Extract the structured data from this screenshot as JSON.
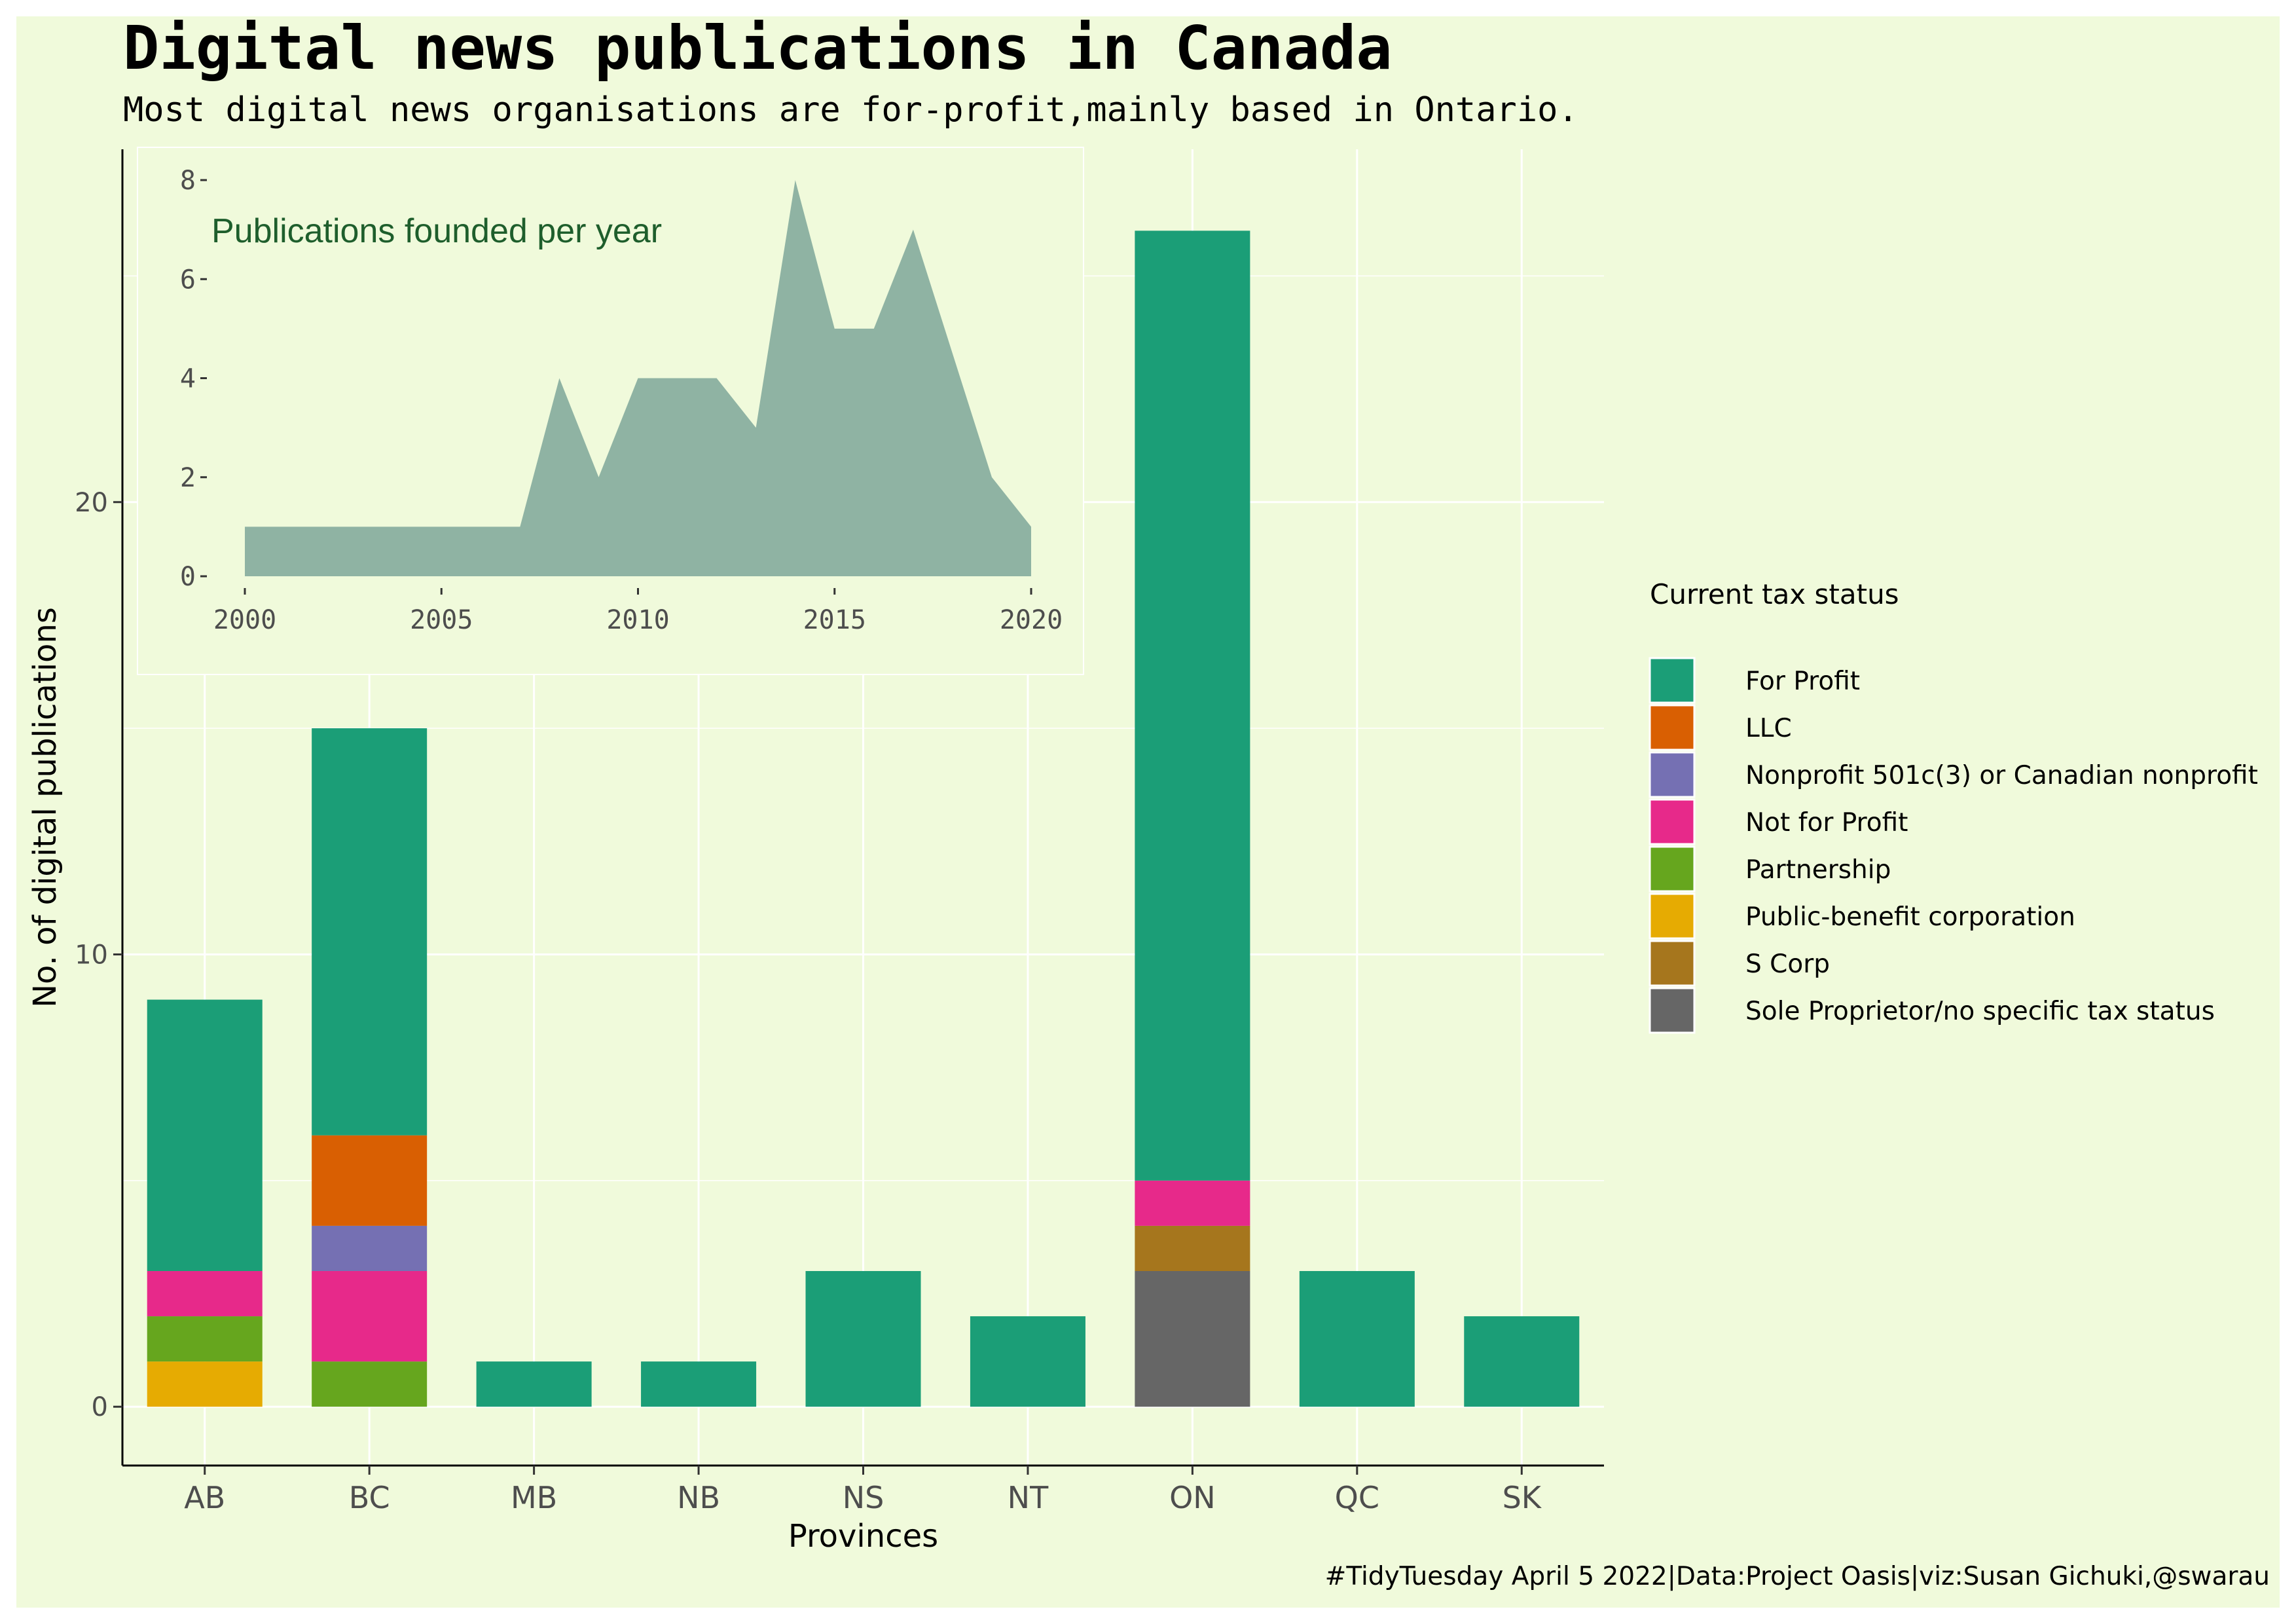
{
  "title": "Digital news publications in Canada",
  "subtitle": "Most digital news organisations are for-profit,mainly based in Ontario.",
  "caption": "#TidyTuesday April 5 2022|Data:Project Oasis|viz:Susan Gichuki,@swarau",
  "colors": {
    "panel_background": "#f0fadb",
    "grid": "#ffffff",
    "inset_fill": "#8fb3a3",
    "inset_title": "#1e5e2c"
  },
  "chart_data": [
    {
      "type": "bar",
      "stacked": true,
      "xlabel": "Provinces",
      "ylabel": "No. of digital publications",
      "ylim": [
        -1.3,
        27.8
      ],
      "yticks": [
        0,
        10,
        20
      ],
      "grid": true,
      "categories": [
        "AB",
        "BC",
        "MB",
        "NB",
        "NS",
        "NT",
        "ON",
        "QC",
        "SK"
      ],
      "legend": {
        "title": "Current tax status",
        "placement": "right"
      },
      "series": [
        {
          "name": "Public-benefit corporation",
          "color": "#e6ab02",
          "values": [
            1,
            0,
            0,
            0,
            0,
            0,
            0,
            0,
            0
          ]
        },
        {
          "name": "Sole Proprietor/no specific tax status",
          "color": "#666666",
          "values": [
            0,
            0,
            0,
            0,
            0,
            0,
            3,
            0,
            0
          ]
        },
        {
          "name": "S Corp",
          "color": "#a6761d",
          "values": [
            0,
            0,
            0,
            0,
            0,
            0,
            1,
            0,
            0
          ]
        },
        {
          "name": "Partnership",
          "color": "#66a61e",
          "values": [
            1,
            1,
            0,
            0,
            0,
            0,
            0,
            0,
            0
          ]
        },
        {
          "name": "Not for Profit",
          "color": "#e7298a",
          "values": [
            1,
            2,
            0,
            0,
            0,
            0,
            1,
            0,
            0
          ]
        },
        {
          "name": "Nonprofit 501c(3) or Canadian nonprofit",
          "color": "#7570b3",
          "values": [
            0,
            1,
            0,
            0,
            0,
            0,
            0,
            0,
            0
          ]
        },
        {
          "name": "LLC",
          "color": "#d95f02",
          "values": [
            0,
            2,
            0,
            0,
            0,
            0,
            0,
            0,
            0
          ]
        },
        {
          "name": "For Profit",
          "color": "#1b9e77",
          "values": [
            6,
            9,
            1,
            1,
            3,
            2,
            21,
            3,
            2
          ]
        }
      ],
      "legend_order": [
        "For Profit",
        "LLC",
        "Nonprofit 501c(3) or Canadian nonprofit",
        "Not for Profit",
        "Partnership",
        "Public-benefit corporation",
        "S Corp",
        "Sole Proprietor/no specific tax status"
      ]
    },
    {
      "type": "area",
      "title": "Publications founded per year",
      "x": [
        2000,
        2001,
        2002,
        2003,
        2004,
        2005,
        2006,
        2007,
        2008,
        2009,
        2010,
        2011,
        2012,
        2013,
        2014,
        2015,
        2016,
        2017,
        2018,
        2019,
        2020
      ],
      "y": [
        1,
        1,
        1,
        1,
        1,
        1,
        1,
        1,
        4,
        2,
        4,
        4,
        4,
        3,
        8,
        5,
        5,
        7,
        4.5,
        2,
        1
      ],
      "xlim": [
        2000,
        2020
      ],
      "ylim": [
        0,
        8
      ],
      "xticks": [
        2000,
        2005,
        2010,
        2015,
        2020
      ],
      "yticks": [
        0,
        2,
        4,
        6,
        8
      ],
      "grid": false
    }
  ]
}
